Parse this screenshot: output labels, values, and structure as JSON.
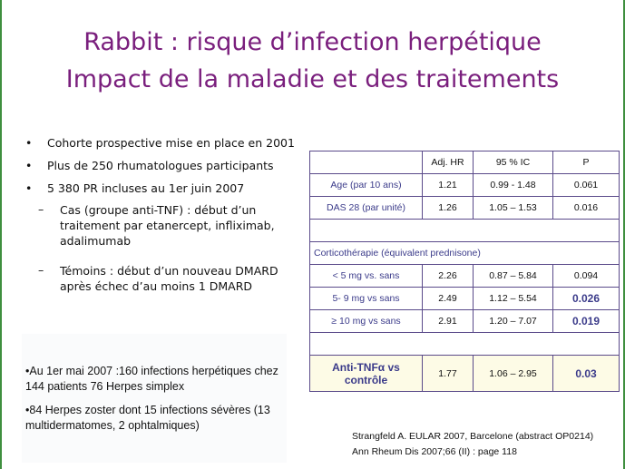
{
  "title": {
    "line1": "Rabbit : risque d’infection herpétique",
    "line2": "Impact de la maladie et des traitements"
  },
  "bullets": [
    {
      "level": 1,
      "text": "Cohorte prospective mise en place en 2001"
    },
    {
      "level": 1,
      "text": "Plus de 250 rhumatologues participants"
    },
    {
      "level": 1,
      "text": "5 380 PR incluses au 1er juin 2007"
    },
    {
      "level": 2,
      "text": "Cas (groupe anti-TNF) : début d’un traitement par etanercept, infliximab, adalimumab"
    },
    {
      "level": 2,
      "text": "Témoins : début d’un nouveau DMARD après échec d’au moins 1 DMARD"
    }
  ],
  "notes": [
    "•Au 1er mai 2007 :160 infections herpétiques chez 144 patients 76 Herpes simplex",
    "•84 Herpes zoster dont 15 infections sévères (13 multidermatomes, 2 ophtalmiques)"
  ],
  "table": {
    "headers": [
      "",
      "Adj. HR",
      "95 % IC",
      "P"
    ],
    "rows": {
      "age": {
        "label": "Age (par 10 ans)",
        "hr": "1.21",
        "ic": "0.99 - 1.48",
        "p": "0.061"
      },
      "das": {
        "label": "DAS 28 (par unité)",
        "hr": "1.26",
        "ic": "1.05 – 1.53",
        "p": "0.016"
      },
      "section": "Corticothérapie (équivalent prednisone)",
      "lt5": {
        "label": "< 5 mg vs. sans",
        "hr": "2.26",
        "ic": "0.87 – 5.84",
        "p": "0.094"
      },
      "r59": {
        "label": "5- 9 mg vs sans",
        "hr": "2.49",
        "ic": "1.12 – 5.54",
        "p": "0.026"
      },
      "ge10": {
        "label": "≥ 10 mg vs sans",
        "hr": "2.91",
        "ic": "1.20 – 7.07",
        "p": "0.019"
      },
      "antitnf": {
        "label": "Anti-TNFα vs contrôle",
        "hr": "1.77",
        "ic": "1.06 – 2.95",
        "p": "0.03"
      }
    }
  },
  "reference": {
    "line1": "Strangfeld A. EULAR 2007, Barcelone (abstract OP0214)",
    "line2": "Ann Rheum Dis 2007;66 (II) : page 118"
  },
  "colors": {
    "title": "#7a1f7d",
    "table_border": "#5a4a8a",
    "table_text": "#3b3b8a",
    "edge": "#3f8f3f"
  }
}
